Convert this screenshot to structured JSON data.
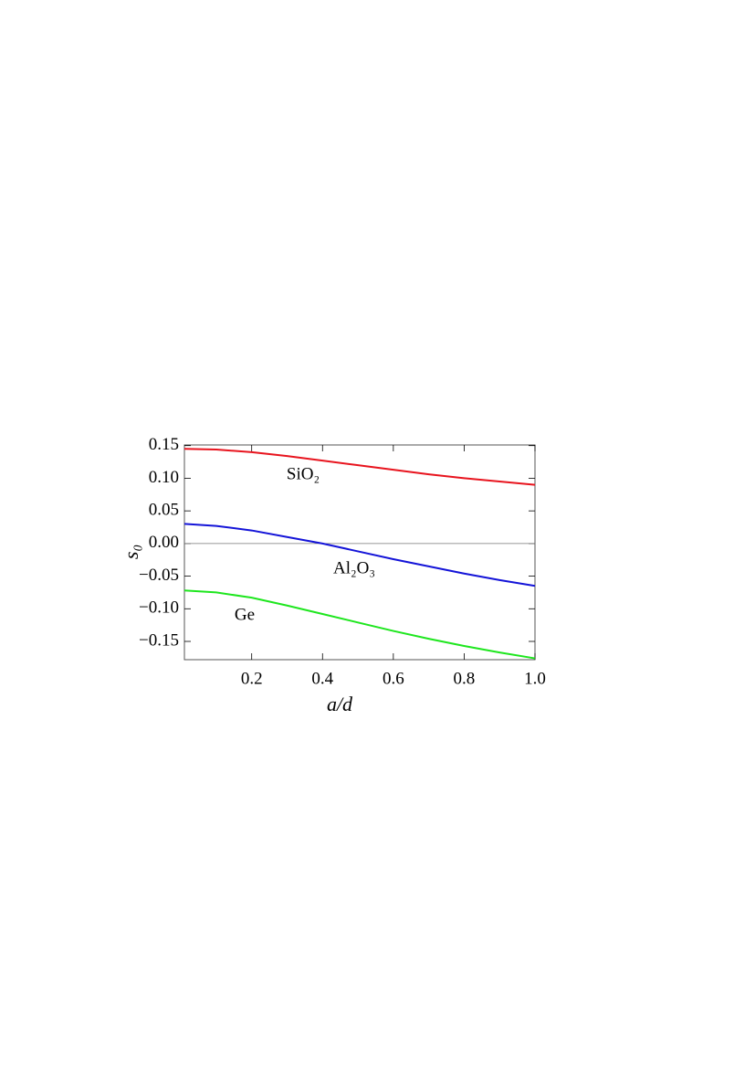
{
  "chart_data": {
    "type": "line",
    "x_label": "a/d",
    "y_label": "s₀",
    "x": [
      0.01,
      0.1,
      0.2,
      0.3,
      0.4,
      0.5,
      0.6,
      0.7,
      0.8,
      0.9,
      1.0
    ],
    "series": [
      {
        "name": "SiO₂",
        "color": "#e8141e",
        "values": [
          0.145,
          0.144,
          0.14,
          0.134,
          0.127,
          0.12,
          0.113,
          0.106,
          0.1,
          0.095,
          0.09
        ]
      },
      {
        "name": "Al₂O₃",
        "color": "#1414d8",
        "values": [
          0.03,
          0.027,
          0.02,
          0.01,
          0.0,
          -0.012,
          -0.024,
          -0.035,
          -0.046,
          -0.056,
          -0.065
        ]
      },
      {
        "name": "Ge",
        "color": "#1ee61e",
        "values": [
          -0.072,
          -0.075,
          -0.083,
          -0.095,
          -0.108,
          -0.121,
          -0.134,
          -0.146,
          -0.157,
          -0.167,
          -0.176
        ]
      }
    ],
    "xlim": [
      0.01,
      1.0
    ],
    "ylim": [
      -0.178,
      0.151
    ],
    "xticks": [
      0.2,
      0.4,
      0.6,
      0.8,
      {
        "value": 1.0,
        "label": "1.0"
      }
    ],
    "yticks": [
      0.15,
      {
        "value": 0.1,
        "label": "0.10"
      },
      0.05,
      {
        "value": 0,
        "label": "0.00"
      },
      {
        "value": -0.05,
        "label": "−0.05"
      },
      {
        "value": -0.1,
        "label": "−0.10"
      },
      {
        "value": -0.15,
        "label": "−0.15"
      }
    ],
    "zero_line": true,
    "grid": false
  }
}
